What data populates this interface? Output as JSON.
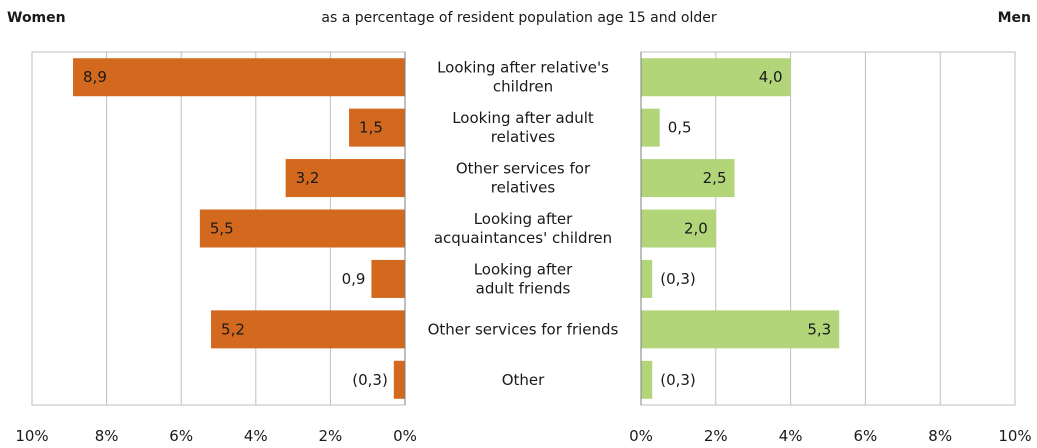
{
  "chart_data": {
    "type": "bar",
    "orientation": "horizontal",
    "layout": "butterfly",
    "left_title": "Women",
    "right_title": "Men",
    "subtitle": "as a percentage of resident population age 15 and older",
    "categories": [
      [
        "Looking after relative's",
        "children"
      ],
      [
        "Looking after adult",
        "relatives"
      ],
      [
        "Other services for",
        "relatives"
      ],
      [
        "Looking after",
        "acquaintances' children"
      ],
      [
        "Looking after",
        "adult friends"
      ],
      [
        "Other services for friends"
      ],
      [
        "Other"
      ]
    ],
    "series": [
      {
        "name": "Women",
        "side": "left",
        "color": "#d2691e",
        "values": [
          8.9,
          1.5,
          3.2,
          5.5,
          0.9,
          5.2,
          0.3
        ],
        "labels": [
          "8,9",
          "1,5",
          "3,2",
          "5,5",
          "0,9",
          "5,2",
          "(0,3)"
        ]
      },
      {
        "name": "Men",
        "side": "right",
        "color": "#b3d57a",
        "values": [
          4.0,
          0.5,
          2.5,
          2.0,
          0.3,
          5.3,
          0.3
        ],
        "labels": [
          "4,0",
          "0,5",
          "2,5",
          "2,0",
          "(0,3)",
          "5,3",
          "(0,3)"
        ]
      }
    ],
    "xlim": [
      0,
      10
    ],
    "ticks": [
      0,
      2,
      4,
      6,
      8,
      10
    ],
    "tick_labels": [
      "0%",
      "2%",
      "4%",
      "6%",
      "8%",
      "10%"
    ],
    "grid": true
  }
}
